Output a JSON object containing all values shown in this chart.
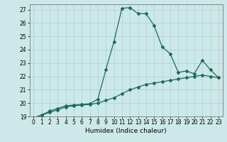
{
  "xlabel": "Humidex (Indice chaleur)",
  "ylabel": "",
  "background_color": "#cde8e8",
  "grid_color": "#aed4d4",
  "line_color": "#1a6b5a",
  "x_values": [
    0,
    1,
    2,
    3,
    4,
    5,
    6,
    7,
    8,
    9,
    10,
    11,
    12,
    13,
    14,
    15,
    16,
    17,
    18,
    19,
    20,
    21,
    22,
    23
  ],
  "y_line1": [
    18.9,
    19.1,
    19.4,
    19.6,
    19.8,
    19.85,
    19.9,
    19.95,
    20.3,
    22.5,
    24.6,
    27.1,
    27.15,
    26.7,
    26.7,
    25.8,
    24.2,
    23.7,
    22.3,
    22.4,
    22.2,
    23.2,
    22.5,
    21.9
  ],
  "y_line2": [
    18.9,
    19.1,
    19.3,
    19.5,
    19.7,
    19.8,
    19.85,
    19.9,
    20.0,
    20.2,
    20.4,
    20.7,
    21.0,
    21.2,
    21.4,
    21.5,
    21.6,
    21.7,
    21.8,
    21.9,
    22.0,
    22.1,
    22.0,
    21.9
  ],
  "xlim": [
    -0.5,
    23.5
  ],
  "ylim": [
    19,
    27.4
  ],
  "yticks": [
    19,
    20,
    21,
    22,
    23,
    24,
    25,
    26,
    27
  ],
  "ytick_labels": [
    "19",
    "20",
    "21",
    "22",
    "23",
    "24",
    "25",
    "26",
    "27"
  ],
  "xticks": [
    0,
    1,
    2,
    3,
    4,
    5,
    6,
    7,
    8,
    9,
    10,
    11,
    12,
    13,
    14,
    15,
    16,
    17,
    18,
    19,
    20,
    21,
    22,
    23
  ],
  "tick_fontsize": 5.5,
  "xlabel_fontsize": 6.5
}
